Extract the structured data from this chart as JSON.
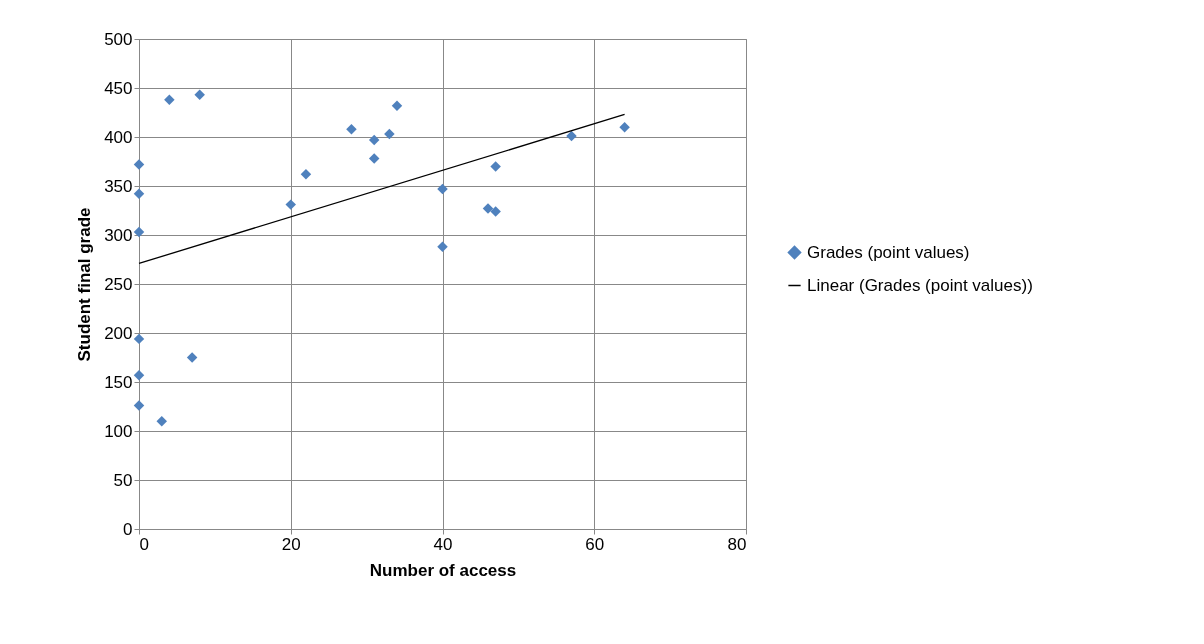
{
  "chart_data": {
    "type": "scatter",
    "xlabel": "Number of access",
    "ylabel": "Student final grade",
    "xlim": [
      0,
      80
    ],
    "xticks": [
      0,
      20,
      40,
      60,
      80
    ],
    "ylim": [
      0,
      500
    ],
    "yticks": [
      0,
      50,
      100,
      150,
      200,
      250,
      300,
      350,
      400,
      450,
      500
    ],
    "grid": true,
    "legend": "right",
    "series": [
      {
        "name": "Grades (point values)",
        "marker": "diamond",
        "color": "#4f81bd",
        "x": [
          0,
          0,
          0,
          0,
          0,
          0,
          3,
          4,
          8,
          7,
          20,
          22,
          28,
          31,
          31,
          33,
          34,
          40,
          40,
          46,
          47,
          47,
          57,
          64
        ],
        "values": [
          372,
          342,
          303,
          194,
          157,
          126,
          110,
          438,
          443,
          175,
          331,
          362,
          408,
          397,
          378,
          403,
          432,
          347,
          288,
          327,
          324,
          370,
          401,
          410
        ]
      },
      {
        "name": "Linear (Grades (point values))",
        "type": "line",
        "color": "#000000",
        "x": [
          0,
          64
        ],
        "values": [
          271,
          423
        ]
      }
    ]
  }
}
